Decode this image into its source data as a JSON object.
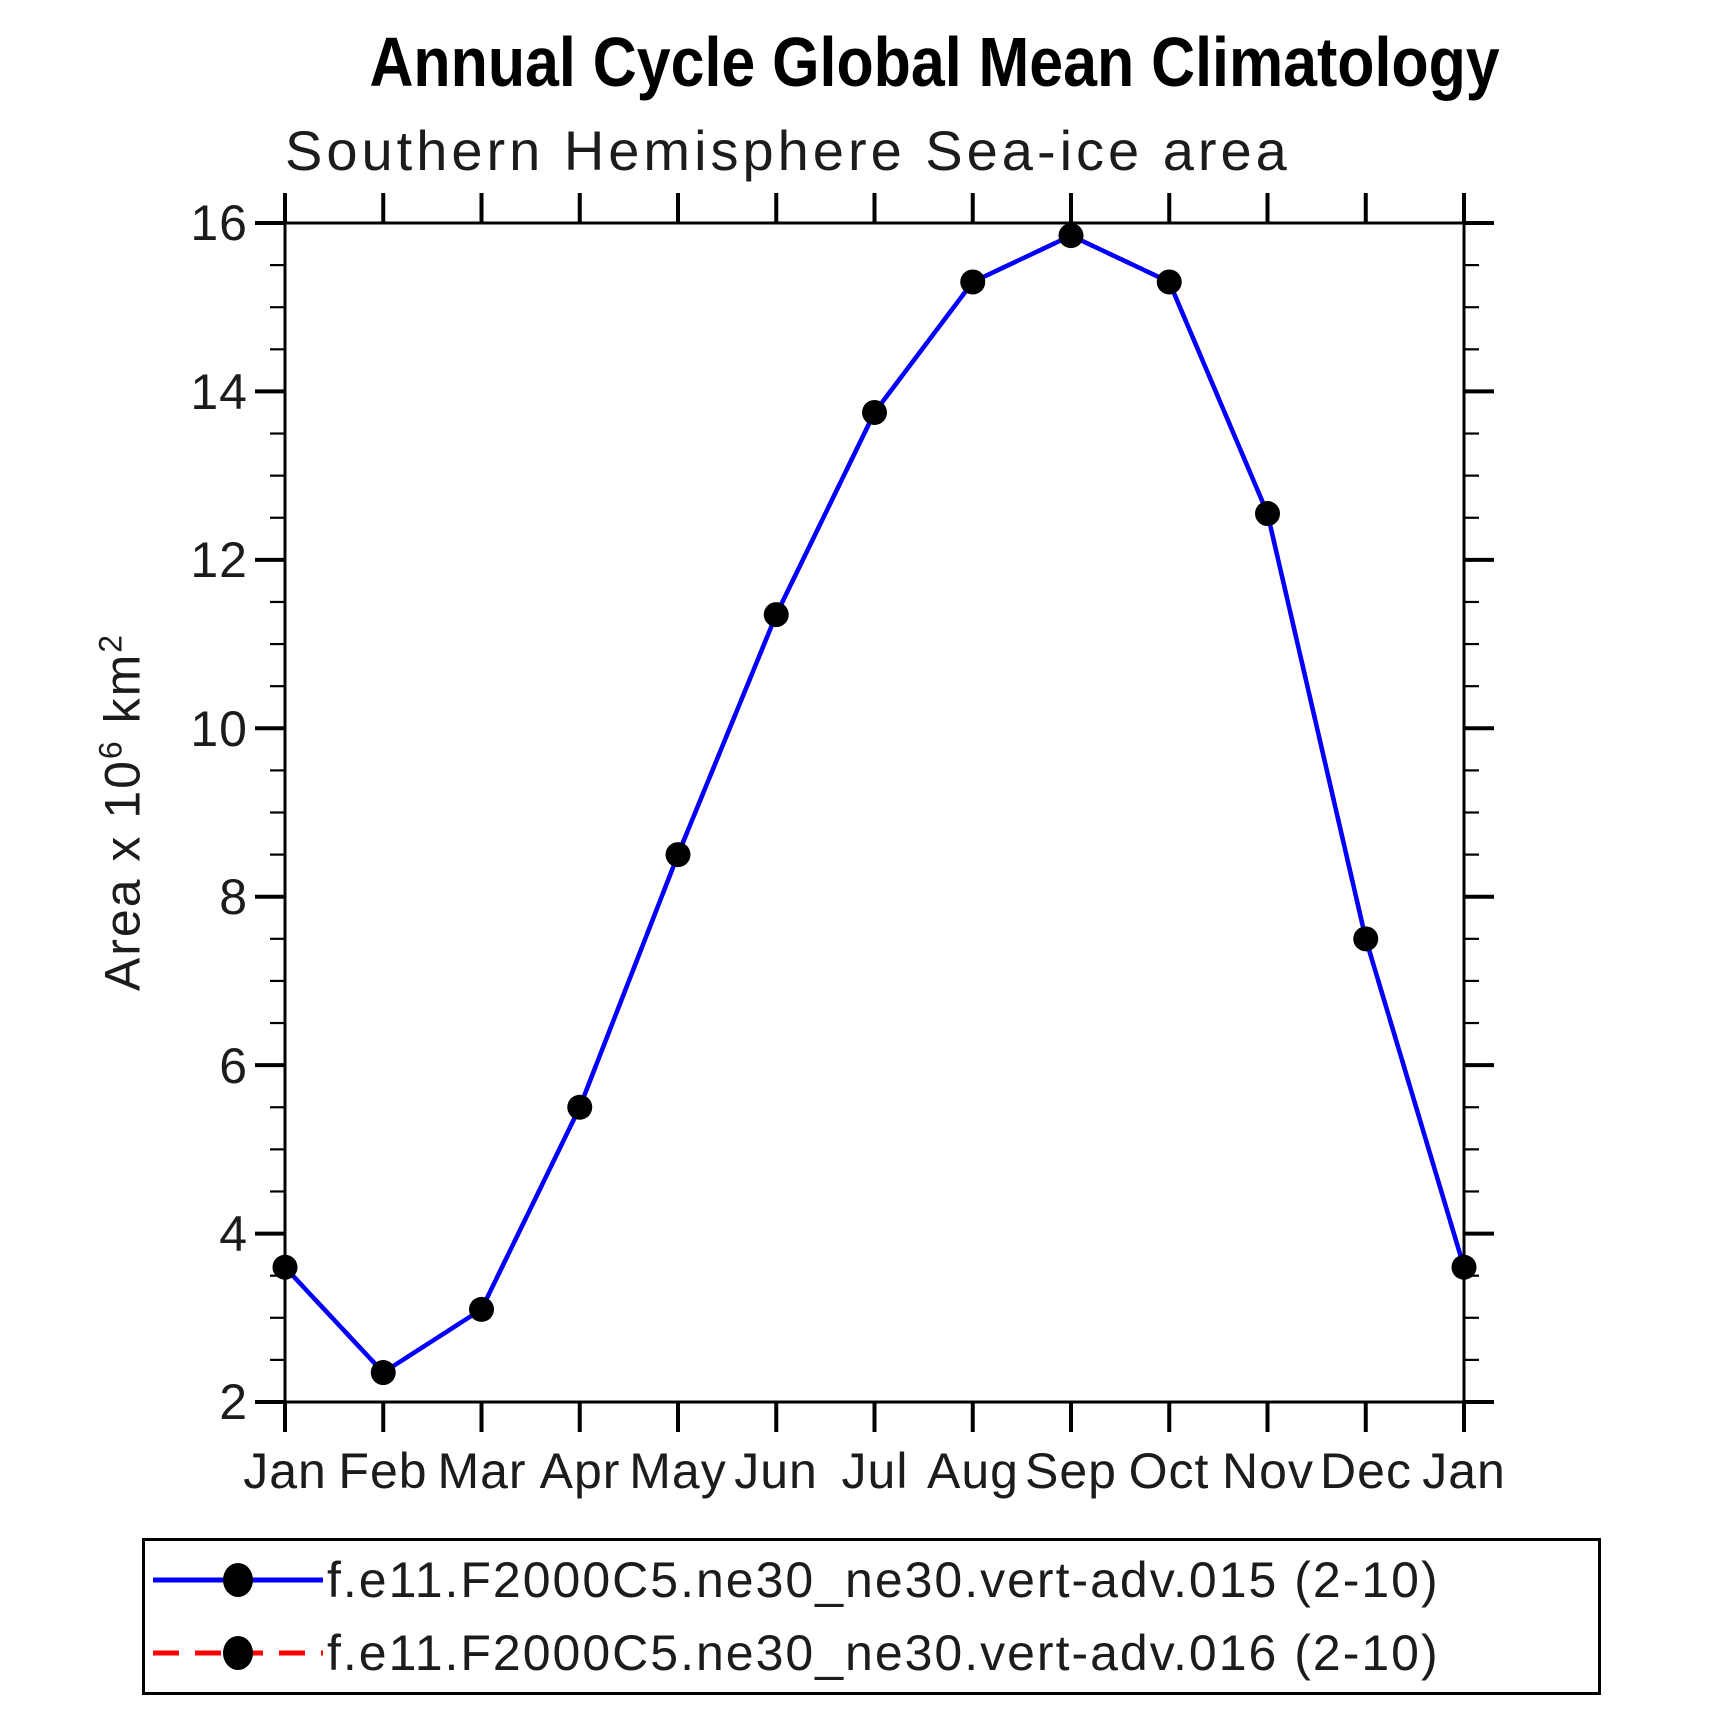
{
  "title": "Annual Cycle Global Mean Climatology",
  "subtitle": "Southern Hemisphere Sea-ice area",
  "y_axis_title": {
    "base1": "Area x 10",
    "sup1": "6",
    "base2": " km",
    "sup2": "2"
  },
  "chart_data": {
    "type": "line",
    "title": "Annual Cycle Global Mean Climatology",
    "subtitle": "Southern Hemisphere Sea-ice area",
    "xlabel": "",
    "ylabel": "Area x 10^6 km^2",
    "categories": [
      "Jan",
      "Feb",
      "Mar",
      "Apr",
      "May",
      "Jun",
      "Jul",
      "Aug",
      "Sep",
      "Oct",
      "Nov",
      "Dec",
      "Jan"
    ],
    "ylim": [
      2,
      16
    ],
    "y_major_step": 2,
    "y_minor_step": 0.5,
    "y_tick_labels": [
      "2",
      "4",
      "6",
      "8",
      "10",
      "12",
      "14",
      "16"
    ],
    "grid": false,
    "legend_position": "bottom",
    "frame_color": "#000000",
    "marker_color": "#000000",
    "series": [
      {
        "name": "f.e11.F2000C5.ne30_ne30.vert-adv.015 (2-10)",
        "color": "#0000ff",
        "style": "solid",
        "marker": "filled-circle",
        "values": [
          3.6,
          2.35,
          3.1,
          5.5,
          8.5,
          11.35,
          13.75,
          15.3,
          15.85,
          15.3,
          12.55,
          7.5,
          3.6
        ]
      },
      {
        "name": "f.e11.F2000C5.ne30_ne30.vert-adv.016 (2-10)",
        "color": "#ff0000",
        "style": "dashed",
        "marker": "filled-circle",
        "note": "coincides with series 1 in plot (hidden beneath blue line)",
        "values": [
          3.6,
          2.35,
          3.1,
          5.5,
          8.5,
          11.35,
          13.75,
          15.3,
          15.85,
          15.3,
          12.55,
          7.5,
          3.6
        ]
      }
    ]
  },
  "legend": {
    "entries": [
      {
        "label": "f.e11.F2000C5.ne30_ne30.vert-adv.015 (2-10)",
        "line_color": "#0000ff",
        "line_style": "solid",
        "marker_color": "#000000"
      },
      {
        "label": "f.e11.F2000C5.ne30_ne30.vert-adv.016 (2-10)",
        "line_color": "#ff0000",
        "line_style": "dashed",
        "marker_color": "#000000"
      }
    ]
  }
}
